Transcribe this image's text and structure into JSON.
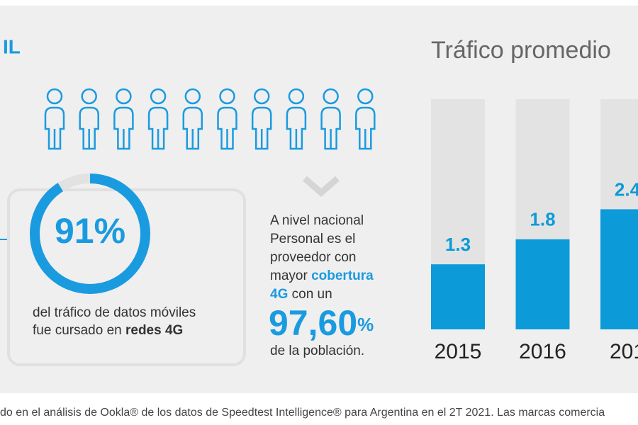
{
  "header": {
    "label": "IL"
  },
  "percent": {
    "value": 91,
    "label": "91%"
  },
  "caption": [
    "del tráfico de datos móviles",
    "fue cursado en ",
    "redes 4G"
  ],
  "coverage": {
    "lines": [
      "A nivel nacional",
      "Personal es el",
      "proveedor con",
      "mayor "
    ],
    "bold1": "cobertura",
    "bold2": "4G",
    "after": " con un",
    "figure": "97,60",
    "unit": "%",
    "last": "de la población."
  },
  "chart_data": {
    "type": "bar",
    "title": "Tráfico promedio",
    "categories": [
      "2015",
      "2016",
      "201"
    ],
    "values": [
      1.3,
      1.8,
      2.4
    ],
    "color": "#0c9ad8",
    "track_color": "#e3e3e3",
    "ylim": [
      0,
      4.6
    ]
  },
  "footnote": "do en el análisis de Ookla® de los datos de Speedtest Intelligence® para Argentina en el 2T 2021. Las marcas comercia"
}
